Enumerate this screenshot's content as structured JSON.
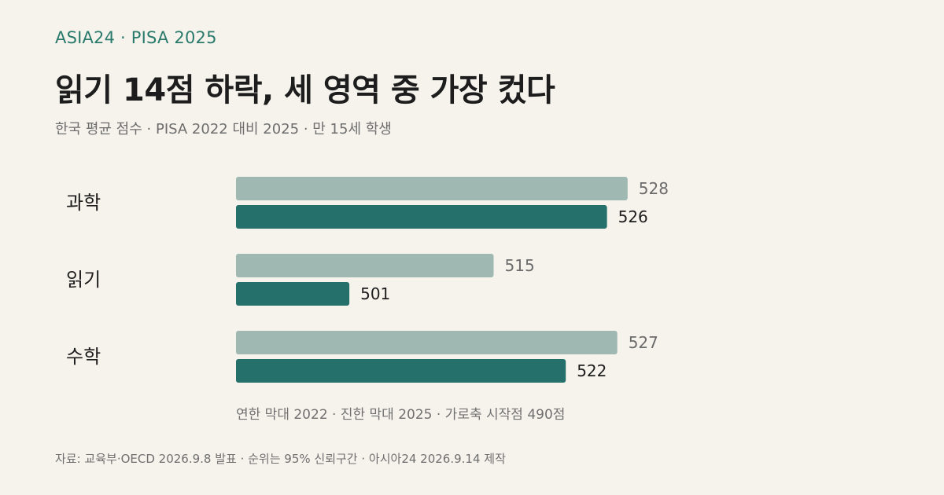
{
  "header": {
    "kicker": "ASIA24 · PISA 2025",
    "title": "읽기 14점 하락, 세 영역 중 가장 컸다",
    "subtitle": "한국 평균 점수 · PISA 2022 대비 2025 · 만 15세 학생"
  },
  "colors": {
    "bar_2022": "#9fb8b1",
    "bar_2025": "#25706a",
    "accent": "#2a7a6b"
  },
  "chart_data": {
    "type": "bar",
    "orientation": "horizontal",
    "categories": [
      "과학",
      "읽기",
      "수학"
    ],
    "series": [
      {
        "name": "2022",
        "values": [
          528,
          515,
          527
        ]
      },
      {
        "name": "2025",
        "values": [
          526,
          501,
          522
        ]
      }
    ],
    "xlim": [
      490,
      530
    ],
    "grid": false,
    "legend_text": "연한 막대 2022 · 진한 막대 2025 · 가로축 시작점 490점"
  },
  "footer": {
    "source": "자료: 교육부·OECD 2026.9.8 발표 · 순위는 95% 신뢰구간 · 아시아24 2026.9.14 제작"
  }
}
